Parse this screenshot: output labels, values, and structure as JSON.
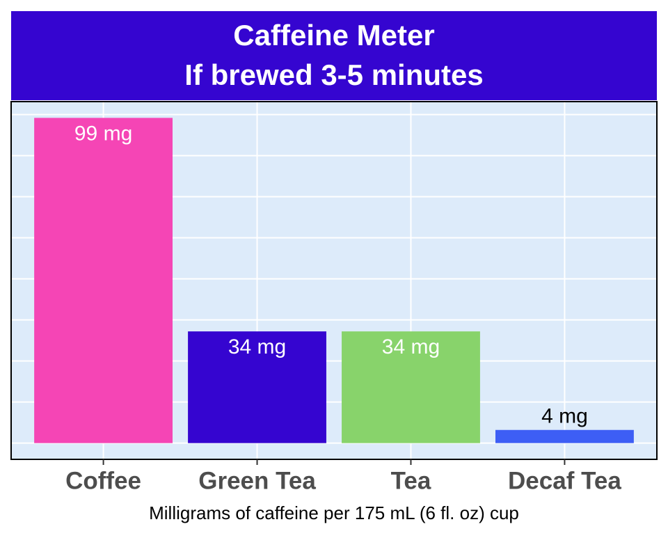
{
  "chart_data": {
    "type": "bar",
    "title": "Caffeine Meter",
    "subtitle": "If brewed 3-5 minutes",
    "x_label": "Milligrams of caffeine per 175 mL (6 fl. oz) cup",
    "categories": [
      "Coffee",
      "Green Tea",
      "Tea",
      "Decaf Tea"
    ],
    "values": [
      99,
      34,
      34,
      4
    ],
    "value_labels": [
      "99 mg",
      "34 mg",
      "34 mg",
      "4 mg"
    ],
    "colors": [
      "#f545b5",
      "#3505d0",
      "#88d36b",
      "#3d5ef5"
    ],
    "value_label_colors": [
      "#ffffff",
      "#ffffff",
      "#ffffff",
      "#000000"
    ],
    "header_color": "#3505d0",
    "ylim": [
      -4.95,
      103.95
    ],
    "yticks": [
      0,
      12.5,
      25,
      37.5,
      50,
      62.5,
      75,
      87.5,
      100
    ],
    "grid": true
  }
}
